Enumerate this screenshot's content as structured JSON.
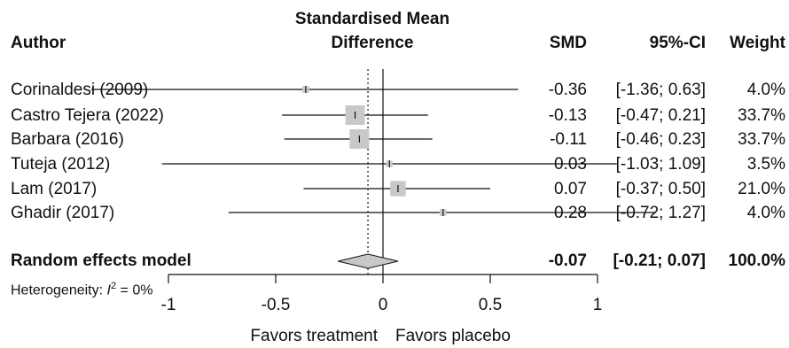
{
  "header": {
    "author": "Author",
    "effect_title_line1": "Standardised Mean",
    "effect_title_line2": "Difference",
    "smd": "SMD",
    "ci": "95%-CI",
    "weight": "Weight"
  },
  "studies": [
    {
      "author": "Corinaldesi (2009)",
      "smd": "-0.36",
      "ci": "[-1.36; 0.63]",
      "weight": "4.0%"
    },
    {
      "author": "Castro Tejera (2022)",
      "smd": "-0.13",
      "ci": "[-0.47; 0.21]",
      "weight": "33.7%"
    },
    {
      "author": "Barbara (2016)",
      "smd": "-0.11",
      "ci": "[-0.46; 0.23]",
      "weight": "33.7%"
    },
    {
      "author": "Tuteja (2012)",
      "smd": "0.03",
      "ci": "[-1.03; 1.09]",
      "weight": "3.5%"
    },
    {
      "author": "Lam (2017)",
      "smd": "0.07",
      "ci": "[-0.37; 0.50]",
      "weight": "21.0%"
    },
    {
      "author": "Ghadir (2017)",
      "smd": "0.28",
      "ci": "[-0.72; 1.27]",
      "weight": "4.0%"
    }
  ],
  "pooled": {
    "label": "Random effects model",
    "smd": "-0.07",
    "ci": "[-0.21; 0.07]",
    "weight": "100.0%"
  },
  "heterogeneity": {
    "prefix": "Heterogeneity: ",
    "symbol": "I",
    "superscript": "2",
    "value": " = 0%"
  },
  "axis_labels": {
    "left": "Favors treatment",
    "right": "Favors placebo"
  },
  "colors": {
    "square": "#c8c8c8",
    "diamond": "#c8c8c8",
    "line": "#111111"
  },
  "chart_data": {
    "type": "forest",
    "measure": "Standardised Mean Difference",
    "studies": [
      {
        "label": "Corinaldesi (2009)",
        "estimate": -0.36,
        "lower": -1.36,
        "upper": 0.63,
        "weight": 4.0
      },
      {
        "label": "Castro Tejera (2022)",
        "estimate": -0.13,
        "lower": -0.47,
        "upper": 0.21,
        "weight": 33.7
      },
      {
        "label": "Barbara (2016)",
        "estimate": -0.11,
        "lower": -0.46,
        "upper": 0.23,
        "weight": 33.7
      },
      {
        "label": "Tuteja (2012)",
        "estimate": 0.03,
        "lower": -1.03,
        "upper": 1.09,
        "weight": 3.5
      },
      {
        "label": "Lam (2017)",
        "estimate": 0.07,
        "lower": -0.37,
        "upper": 0.5,
        "weight": 21.0
      },
      {
        "label": "Ghadir (2017)",
        "estimate": 0.28,
        "lower": -0.72,
        "upper": 1.27,
        "weight": 4.0
      }
    ],
    "pooled": {
      "label": "Random effects model",
      "estimate": -0.07,
      "lower": -0.21,
      "upper": 0.07,
      "weight": 100.0
    },
    "null_line": 0,
    "xlim": [
      -1,
      1
    ],
    "ticks": [
      -1,
      -0.5,
      0,
      0.5,
      1
    ],
    "tick_labels": [
      "-1",
      "-0.5",
      "0",
      "0.5",
      "1"
    ]
  }
}
